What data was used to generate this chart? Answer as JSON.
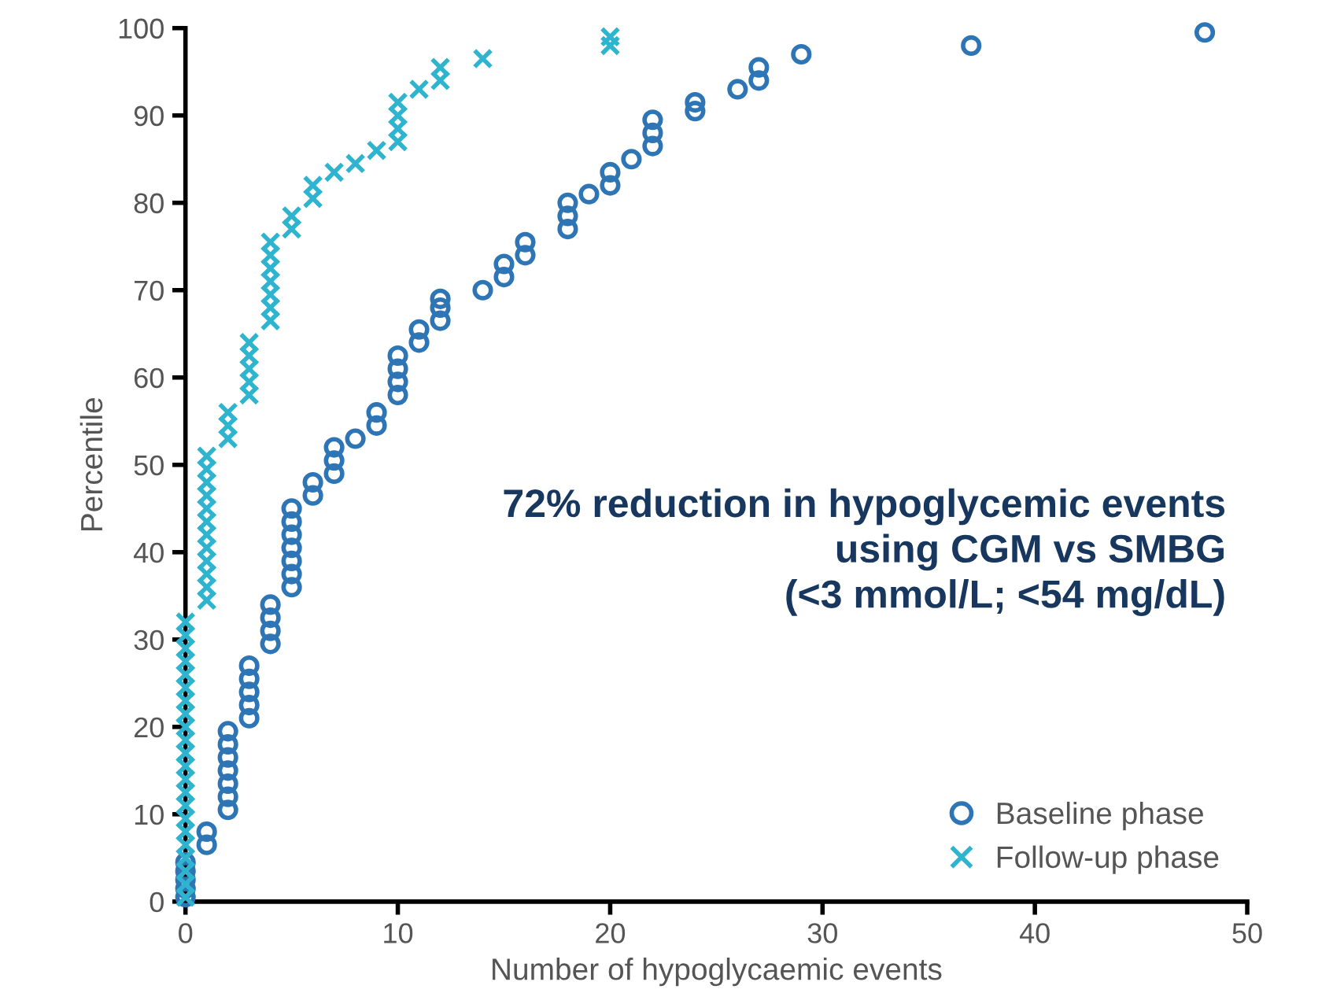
{
  "chart_data": {
    "type": "scatter",
    "xlabel": "Number of hypoglycaemic events",
    "ylabel": "Percentile",
    "xlim": [
      0,
      50
    ],
    "xticks": [
      0,
      10,
      20,
      30,
      40,
      50
    ],
    "ylim": [
      0,
      100
    ],
    "yticks": [
      0,
      10,
      20,
      30,
      40,
      50,
      60,
      70,
      80,
      90,
      100
    ],
    "grid": false,
    "legend": "bottom right",
    "annotations": [
      "72% reduction in hypoglycemic events\nusing CGM vs SMBG\n(<3 mmol/L; <54 mg/dL)"
    ],
    "series": [
      {
        "name": "Baseline phase",
        "color": "#2e75b6",
        "marker": "circle",
        "x": [
          0,
          0,
          0,
          0,
          0,
          1,
          1,
          2,
          2,
          2,
          2,
          2,
          2,
          2,
          3,
          3,
          3,
          3,
          3,
          4,
          4,
          4,
          4,
          5,
          5,
          5,
          5,
          5,
          5,
          5,
          6,
          6,
          7,
          7,
          7,
          8,
          9,
          9,
          10,
          10,
          10,
          10,
          11,
          11,
          12,
          12,
          12,
          14,
          15,
          15,
          16,
          16,
          18,
          18,
          18,
          19,
          20,
          20,
          21,
          22,
          22,
          22,
          24,
          24,
          26,
          27,
          27,
          29,
          37,
          48
        ],
        "values": [
          0.5,
          1.5,
          2.5,
          3.5,
          4.5,
          6.5,
          8,
          10.5,
          12,
          13.5,
          15,
          16.5,
          18,
          19.5,
          21,
          22.5,
          24,
          25.5,
          27,
          29.5,
          31,
          32.5,
          34,
          36,
          37.5,
          39,
          40.5,
          42,
          43.5,
          45,
          46.5,
          48,
          49,
          50.5,
          52,
          53,
          54.5,
          56,
          58,
          59.5,
          61,
          62.5,
          64,
          65.5,
          66.5,
          68,
          69,
          70,
          71.5,
          73,
          74,
          75.5,
          77,
          78.5,
          80,
          81,
          82,
          83.5,
          85,
          86.5,
          88,
          89.5,
          90.5,
          91.5,
          93,
          94,
          95.5,
          97,
          98,
          99.5
        ]
      },
      {
        "name": "Follow-up phase",
        "color": "#2fb4d0",
        "marker": "cross",
        "x": [
          0,
          0,
          0,
          0,
          0,
          0,
          0,
          0,
          0,
          0,
          0,
          0,
          0,
          0,
          0,
          0,
          0,
          0,
          0,
          0,
          0,
          0,
          1,
          1,
          1,
          1,
          1,
          1,
          1,
          1,
          1,
          1,
          1,
          1,
          2,
          2,
          2,
          3,
          3,
          3,
          3,
          3,
          4,
          4,
          4,
          4,
          4,
          4,
          4,
          5,
          5,
          6,
          6,
          7,
          8,
          9,
          10,
          10,
          10,
          10,
          11,
          12,
          12,
          14,
          20,
          20
        ],
        "values": [
          0.5,
          2,
          3.5,
          5,
          6.5,
          8,
          9.5,
          11,
          12.5,
          14,
          15.5,
          17,
          18.5,
          20,
          21.5,
          23,
          24.5,
          26,
          27.5,
          29,
          30.5,
          32,
          34.5,
          36,
          37.5,
          39,
          40.5,
          42,
          43.5,
          45,
          46.5,
          48,
          49.5,
          51,
          53,
          54.5,
          56,
          58,
          59.5,
          61,
          62.5,
          64,
          66.5,
          68,
          69.5,
          71,
          72.5,
          74,
          75.5,
          77,
          78.5,
          80.5,
          82,
          83.5,
          84.5,
          86,
          87,
          88.5,
          90,
          91.5,
          93,
          94,
          95.5,
          96.5,
          98,
          99
        ]
      }
    ]
  }
}
